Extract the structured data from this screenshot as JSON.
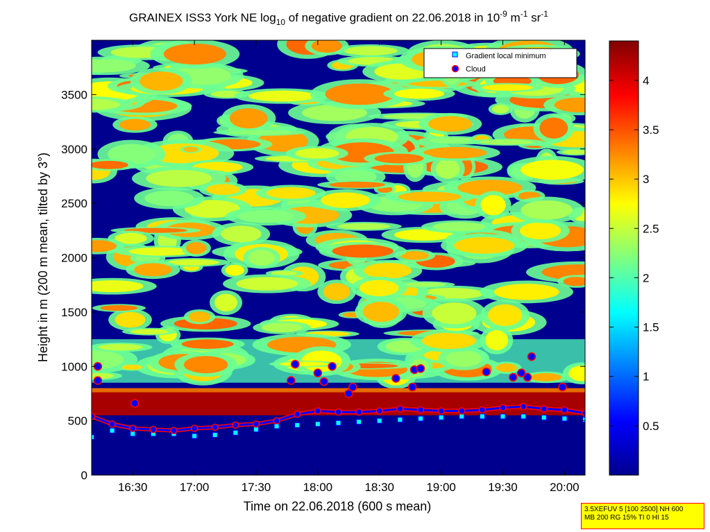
{
  "chart_data": {
    "type": "heatmap",
    "title": {
      "prefix": "GRAINEX ISS3 York NE log",
      "prefix_sub": "10",
      "middle": " of negative gradient on 22.06.2018 in 10",
      "exp1": "-9",
      "unit1": " m",
      "exp2": "-1",
      "unit2": " sr",
      "exp3": "-1"
    },
    "xlabel": "Time on 22.06.2018 (600 s mean)",
    "ylabel": "Height in m (200 m mean, tilted by 3°)",
    "x_range": [
      "16:10",
      "20:10"
    ],
    "x_ticks": [
      "16:30",
      "17:00",
      "17:30",
      "18:00",
      "18:30",
      "19:00",
      "19:30",
      "20:00"
    ],
    "ylim": [
      0,
      4000
    ],
    "y_ticks": [
      0,
      500,
      1000,
      1500,
      2000,
      2500,
      3000,
      3500
    ],
    "colorbar": {
      "range": [
        0,
        4.4
      ],
      "ticks": [
        0.5,
        1,
        1.5,
        2,
        2.5,
        3,
        3.5,
        4
      ],
      "colormap": "jet"
    },
    "legend": {
      "position": "top-right",
      "entries": [
        {
          "name": "Gradient local minimum",
          "marker": "square",
          "fill": "#00ffff",
          "edge": "#0000ff"
        },
        {
          "name": "Cloud",
          "marker": "circle",
          "fill": "#0000ff",
          "edge": "#ff0000"
        }
      ]
    },
    "gradient_minimum_series": {
      "time": [
        "16:10",
        "16:20",
        "16:30",
        "16:40",
        "16:50",
        "17:00",
        "17:10",
        "17:20",
        "17:30",
        "17:40",
        "17:50",
        "18:00",
        "18:10",
        "18:20",
        "18:30",
        "18:40",
        "18:50",
        "19:00",
        "19:10",
        "19:20",
        "19:30",
        "19:40",
        "19:50",
        "20:00",
        "20:10"
      ],
      "height": [
        350,
        410,
        380,
        380,
        380,
        360,
        370,
        390,
        420,
        450,
        460,
        470,
        480,
        490,
        500,
        510,
        520,
        530,
        540,
        540,
        540,
        540,
        530,
        520,
        510
      ]
    },
    "cloud_series": {
      "time": [
        "16:10",
        "16:20",
        "16:30",
        "16:40",
        "16:50",
        "17:00",
        "17:10",
        "17:20",
        "17:30",
        "17:40",
        "17:50",
        "18:00",
        "18:10",
        "18:20",
        "18:30",
        "18:40",
        "18:50",
        "19:00",
        "19:10",
        "19:20",
        "19:30",
        "19:40",
        "19:50",
        "20:00",
        "20:10"
      ],
      "height": [
        540,
        470,
        430,
        420,
        410,
        430,
        440,
        460,
        470,
        500,
        560,
        590,
        580,
        580,
        590,
        610,
        600,
        590,
        590,
        600,
        620,
        630,
        610,
        600,
        570
      ]
    },
    "cloud_high_points": {
      "time": [
        "16:13",
        "16:13",
        "16:31",
        "17:47",
        "17:49",
        "18:00",
        "18:03",
        "18:07",
        "18:15",
        "18:17",
        "18:38",
        "18:46",
        "18:47",
        "18:50",
        "19:22",
        "19:35",
        "19:39",
        "19:42",
        "19:44",
        "19:59"
      ],
      "height": [
        1000,
        870,
        660,
        870,
        1020,
        940,
        860,
        1000,
        750,
        810,
        890,
        810,
        970,
        980,
        950,
        900,
        940,
        900,
        1090,
        810
      ]
    }
  },
  "stamp": {
    "line1": "3.5XEFUV 5 [100 2500] NH 600",
    "line2": "MB 200 RG 15% TI 0 HI 15"
  }
}
